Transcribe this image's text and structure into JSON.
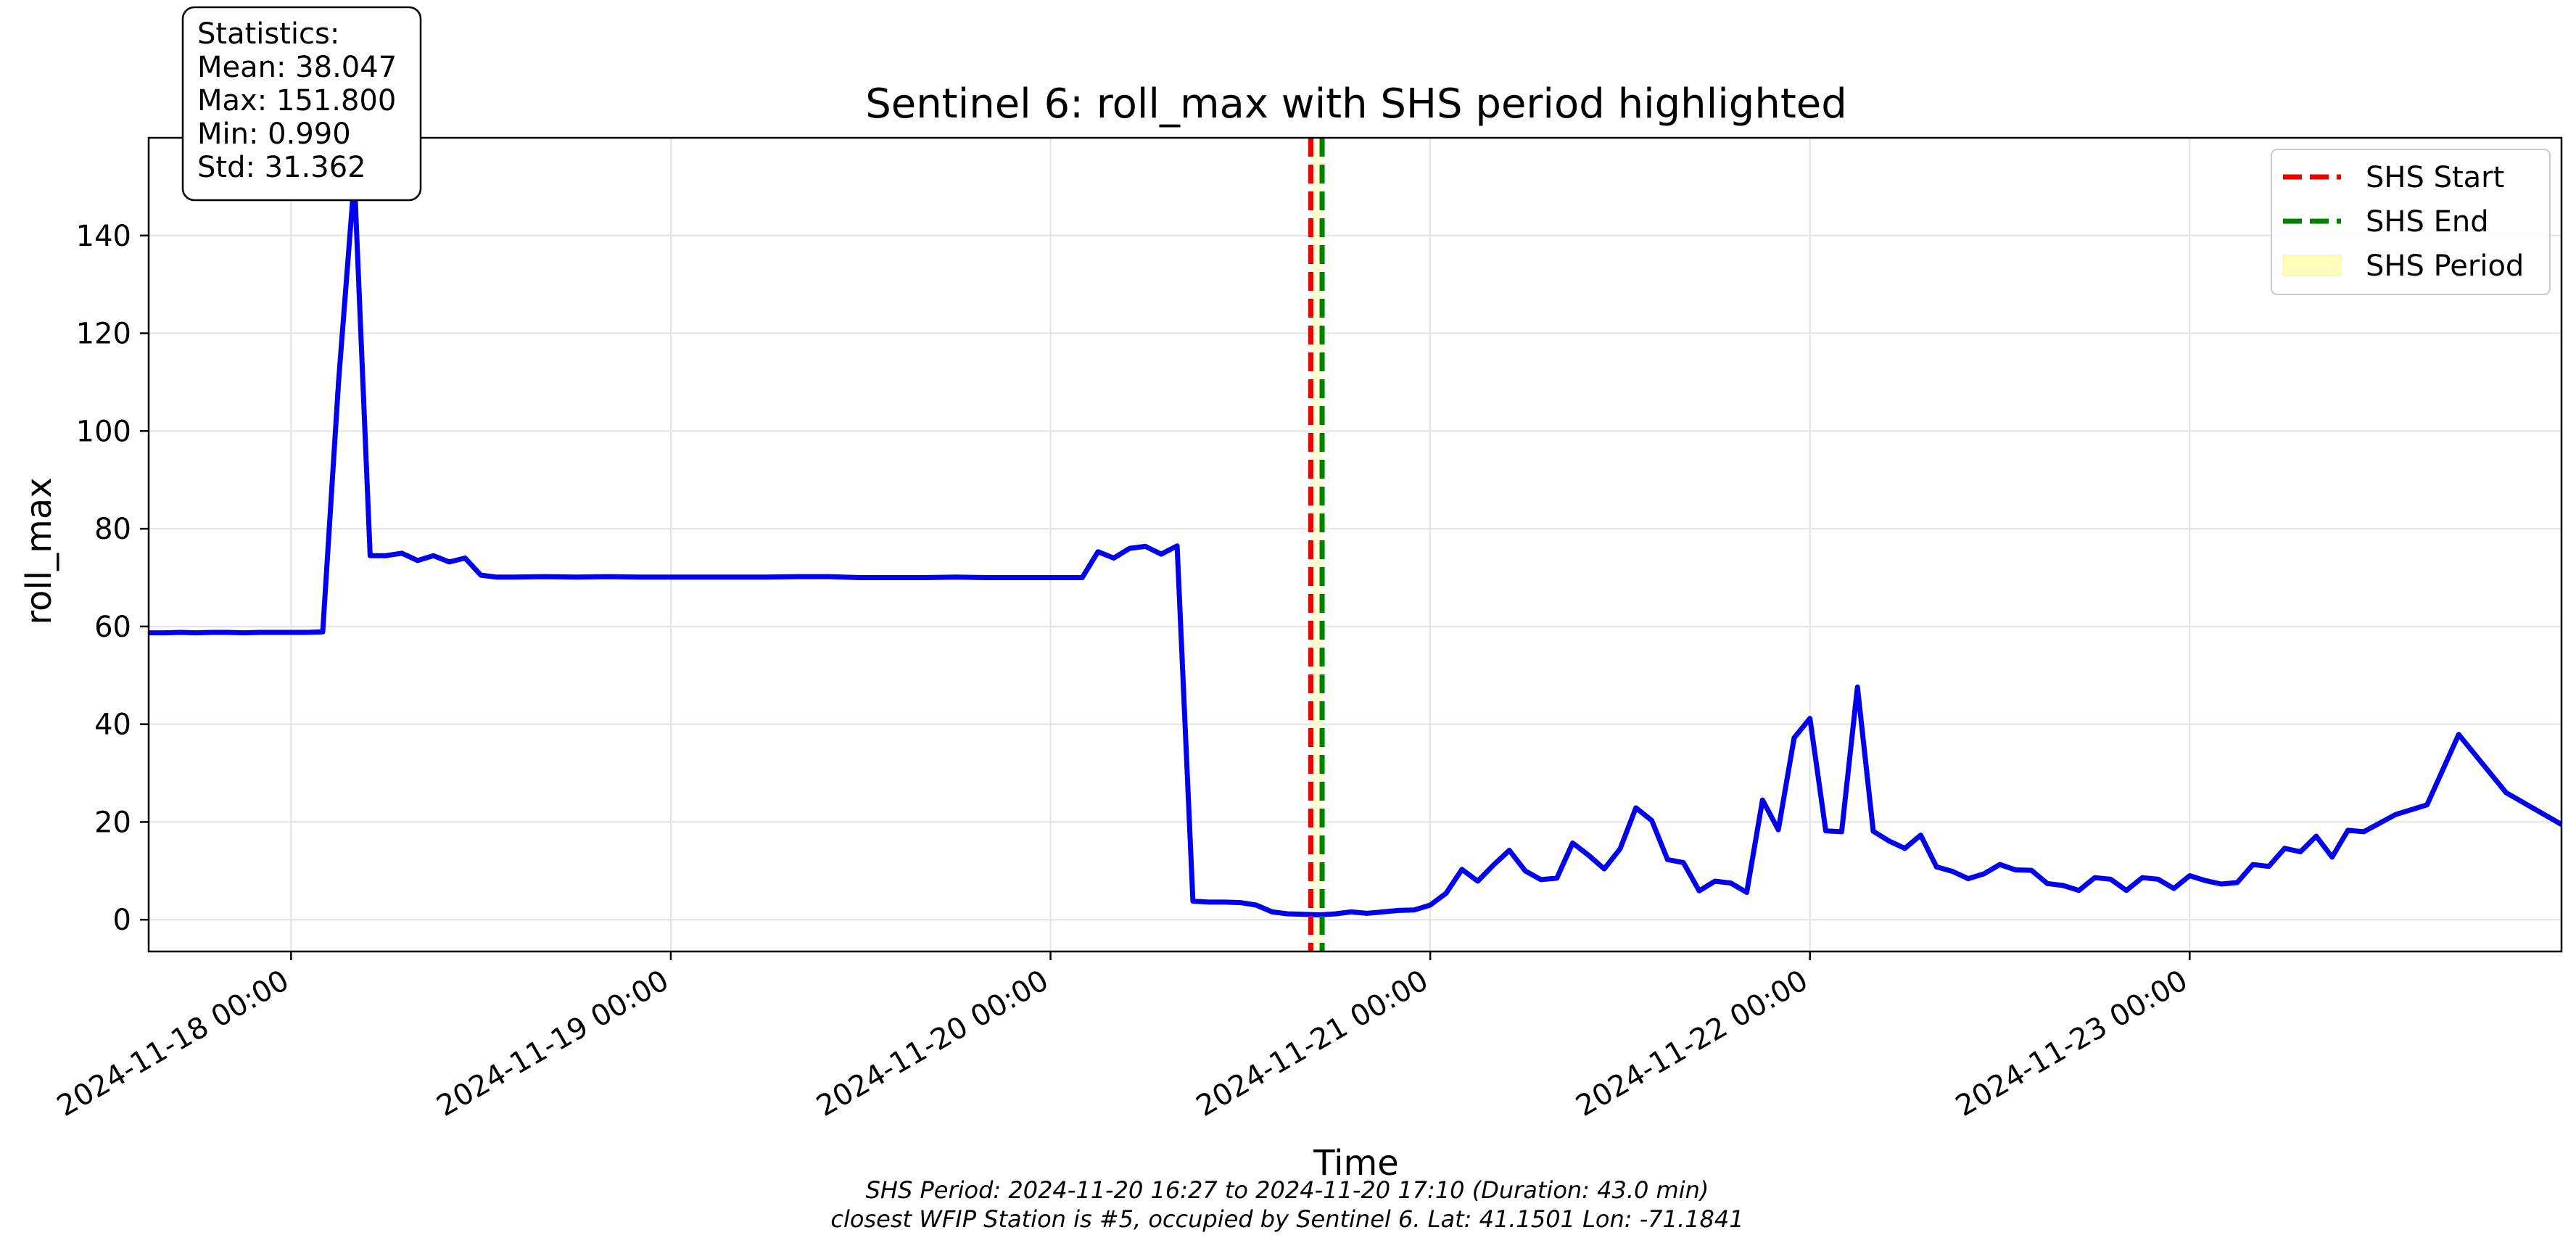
{
  "chart_data": {
    "type": "line",
    "title": "Sentinel 6: roll_max with SHS period highlighted",
    "xlabel": "Time",
    "ylabel": "roll_max",
    "ylim": [
      -6.5,
      160
    ],
    "xlim": [
      "2024-11-17 15:00",
      "2024-11-23 23:30"
    ],
    "y_ticks": [
      0,
      20,
      40,
      60,
      80,
      100,
      120,
      140
    ],
    "x_ticks": [
      "2024-11-18 00:00",
      "2024-11-19 00:00",
      "2024-11-20 00:00",
      "2024-11-21 00:00",
      "2024-11-22 00:00",
      "2024-11-23 00:00"
    ],
    "grid": true,
    "legend_position": "top-right",
    "series": [
      {
        "color": "#0000ee",
        "points": [
          [
            "2024-11-17 15:00",
            58.7
          ],
          [
            "2024-11-17 16:00",
            58.7
          ],
          [
            "2024-11-17 17:00",
            58.8
          ],
          [
            "2024-11-17 18:00",
            58.7
          ],
          [
            "2024-11-17 19:00",
            58.8
          ],
          [
            "2024-11-17 20:00",
            58.8
          ],
          [
            "2024-11-17 21:00",
            58.7
          ],
          [
            "2024-11-17 22:00",
            58.8
          ],
          [
            "2024-11-17 23:00",
            58.8
          ],
          [
            "2024-11-18 00:00",
            58.8
          ],
          [
            "2024-11-18 01:00",
            58.8
          ],
          [
            "2024-11-18 02:00",
            58.9
          ],
          [
            "2024-11-18 03:00",
            110.0
          ],
          [
            "2024-11-18 04:00",
            151.8
          ],
          [
            "2024-11-18 05:00",
            74.5
          ],
          [
            "2024-11-18 06:00",
            74.5
          ],
          [
            "2024-11-18 07:00",
            75.0
          ],
          [
            "2024-11-18 08:00",
            73.5
          ],
          [
            "2024-11-18 09:00",
            74.5
          ],
          [
            "2024-11-18 10:00",
            73.2
          ],
          [
            "2024-11-18 11:00",
            74.0
          ],
          [
            "2024-11-18 12:00",
            70.5
          ],
          [
            "2024-11-18 13:00",
            70.1
          ],
          [
            "2024-11-18 14:00",
            70.1
          ],
          [
            "2024-11-18 16:00",
            70.2
          ],
          [
            "2024-11-18 18:00",
            70.1
          ],
          [
            "2024-11-18 20:00",
            70.2
          ],
          [
            "2024-11-18 22:00",
            70.1
          ],
          [
            "2024-11-19 00:00",
            70.1
          ],
          [
            "2024-11-19 02:00",
            70.1
          ],
          [
            "2024-11-19 04:00",
            70.1
          ],
          [
            "2024-11-19 06:00",
            70.1
          ],
          [
            "2024-11-19 08:00",
            70.2
          ],
          [
            "2024-11-19 10:00",
            70.2
          ],
          [
            "2024-11-19 12:00",
            70.0
          ],
          [
            "2024-11-19 14:00",
            70.0
          ],
          [
            "2024-11-19 16:00",
            70.0
          ],
          [
            "2024-11-19 18:00",
            70.1
          ],
          [
            "2024-11-19 20:00",
            70.0
          ],
          [
            "2024-11-19 22:00",
            70.0
          ],
          [
            "2024-11-20 00:00",
            70.0
          ],
          [
            "2024-11-20 01:00",
            70.0
          ],
          [
            "2024-11-20 02:00",
            70.0
          ],
          [
            "2024-11-20 03:00",
            75.3
          ],
          [
            "2024-11-20 04:00",
            74.0
          ],
          [
            "2024-11-20 05:00",
            76.0
          ],
          [
            "2024-11-20 06:00",
            76.4
          ],
          [
            "2024-11-20 07:00",
            74.8
          ],
          [
            "2024-11-20 08:00",
            76.5
          ],
          [
            "2024-11-20 09:00",
            3.8
          ],
          [
            "2024-11-20 10:00",
            3.6
          ],
          [
            "2024-11-20 11:00",
            3.6
          ],
          [
            "2024-11-20 12:00",
            3.5
          ],
          [
            "2024-11-20 13:00",
            3.0
          ],
          [
            "2024-11-20 14:00",
            1.6
          ],
          [
            "2024-11-20 15:00",
            1.2
          ],
          [
            "2024-11-20 16:00",
            1.1
          ],
          [
            "2024-11-20 17:00",
            1.0
          ],
          [
            "2024-11-20 18:00",
            1.2
          ],
          [
            "2024-11-20 19:00",
            1.6
          ],
          [
            "2024-11-20 20:00",
            1.3
          ],
          [
            "2024-11-20 21:00",
            1.6
          ],
          [
            "2024-11-20 22:00",
            1.9
          ],
          [
            "2024-11-20 23:00",
            2.0
          ],
          [
            "2024-11-21 00:00",
            3.0
          ],
          [
            "2024-11-21 01:00",
            5.4
          ],
          [
            "2024-11-21 02:00",
            10.3
          ],
          [
            "2024-11-21 03:00",
            7.9
          ],
          [
            "2024-11-21 04:00",
            11.2
          ],
          [
            "2024-11-21 05:00",
            14.2
          ],
          [
            "2024-11-21 06:00",
            10.0
          ],
          [
            "2024-11-21 07:00",
            8.2
          ],
          [
            "2024-11-21 08:00",
            8.5
          ],
          [
            "2024-11-21 09:00",
            15.7
          ],
          [
            "2024-11-21 10:00",
            13.2
          ],
          [
            "2024-11-21 11:00",
            10.4
          ],
          [
            "2024-11-21 12:00",
            14.5
          ],
          [
            "2024-11-21 13:00",
            22.9
          ],
          [
            "2024-11-21 14:00",
            20.3
          ],
          [
            "2024-11-21 15:00",
            12.3
          ],
          [
            "2024-11-21 16:00",
            11.7
          ],
          [
            "2024-11-21 17:00",
            5.9
          ],
          [
            "2024-11-21 18:00",
            7.9
          ],
          [
            "2024-11-21 19:00",
            7.5
          ],
          [
            "2024-11-21 20:00",
            5.6
          ],
          [
            "2024-11-21 21:00",
            24.5
          ],
          [
            "2024-11-21 22:00",
            18.4
          ],
          [
            "2024-11-21 23:00",
            37.2
          ],
          [
            "2024-11-22 00:00",
            41.2
          ],
          [
            "2024-11-22 01:00",
            18.2
          ],
          [
            "2024-11-22 02:00",
            18.0
          ],
          [
            "2024-11-22 03:00",
            47.6
          ],
          [
            "2024-11-22 04:00",
            18.1
          ],
          [
            "2024-11-22 05:00",
            16.1
          ],
          [
            "2024-11-22 06:00",
            14.6
          ],
          [
            "2024-11-22 07:00",
            17.3
          ],
          [
            "2024-11-22 08:00",
            10.8
          ],
          [
            "2024-11-22 09:00",
            9.9
          ],
          [
            "2024-11-22 10:00",
            8.4
          ],
          [
            "2024-11-22 11:00",
            9.4
          ],
          [
            "2024-11-22 12:00",
            11.3
          ],
          [
            "2024-11-22 13:00",
            10.2
          ],
          [
            "2024-11-22 14:00",
            10.1
          ],
          [
            "2024-11-22 15:00",
            7.4
          ],
          [
            "2024-11-22 16:00",
            7.0
          ],
          [
            "2024-11-22 17:00",
            6.0
          ],
          [
            "2024-11-22 18:00",
            8.6
          ],
          [
            "2024-11-22 19:00",
            8.3
          ],
          [
            "2024-11-22 20:00",
            6.0
          ],
          [
            "2024-11-22 21:00",
            8.6
          ],
          [
            "2024-11-22 22:00",
            8.3
          ],
          [
            "2024-11-22 23:00",
            6.4
          ],
          [
            "2024-11-23 00:00",
            9.0
          ],
          [
            "2024-11-23 01:00",
            8.0
          ],
          [
            "2024-11-23 02:00",
            7.3
          ],
          [
            "2024-11-23 03:00",
            7.6
          ],
          [
            "2024-11-23 04:00",
            11.3
          ],
          [
            "2024-11-23 05:00",
            10.9
          ],
          [
            "2024-11-23 06:00",
            14.6
          ],
          [
            "2024-11-23 07:00",
            13.9
          ],
          [
            "2024-11-23 08:00",
            17.1
          ],
          [
            "2024-11-23 09:00",
            12.8
          ],
          [
            "2024-11-23 10:00",
            18.3
          ],
          [
            "2024-11-23 11:00",
            18.0
          ],
          [
            "2024-11-23 13:00",
            21.5
          ],
          [
            "2024-11-23 15:00",
            23.5
          ],
          [
            "2024-11-23 17:00",
            37.9
          ],
          [
            "2024-11-23 20:00",
            26.0
          ],
          [
            "2024-11-23 23:30",
            19.5
          ]
        ]
      }
    ],
    "vertical_lines": [
      {
        "name": "SHS Start",
        "x": "2024-11-20 16:27",
        "color": "#ee0000",
        "style": "dashed"
      },
      {
        "name": "SHS End",
        "x": "2024-11-20 17:10",
        "color": "#008000",
        "style": "dashed"
      }
    ],
    "span": {
      "name": "SHS Period",
      "start": "2024-11-20 16:27",
      "end": "2024-11-20 17:10",
      "color": "#ffffbb"
    },
    "legend": [
      {
        "label": "SHS Start",
        "color": "#ee0000",
        "kind": "dashed-line"
      },
      {
        "label": "SHS End",
        "color": "#008000",
        "kind": "dashed-line"
      },
      {
        "label": "SHS Period",
        "color": "#ffffbb",
        "kind": "patch"
      }
    ],
    "stats_box": [
      "Statistics:",
      "Mean: 38.047",
      "Max: 151.800",
      "Min: 0.990",
      "Std: 31.362"
    ],
    "footnote": [
      "SHS Period: 2024-11-20 16:27 to 2024-11-20 17:10 (Duration: 43.0 min)",
      "closest WFIP Station is #5, occupied by Sentinel 6. Lat: 41.1501 Lon: -71.1841"
    ]
  }
}
